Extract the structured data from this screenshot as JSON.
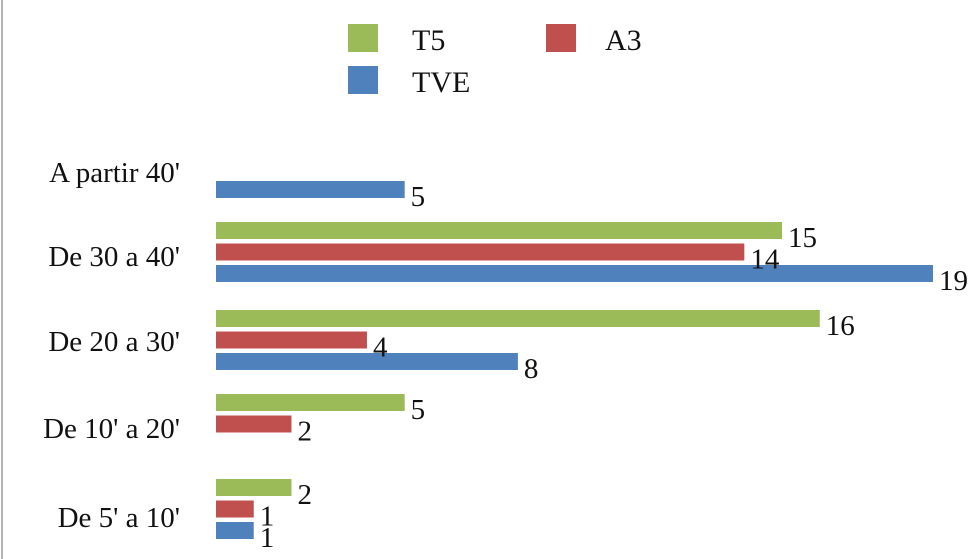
{
  "chart_data": {
    "type": "bar",
    "orientation": "horizontal",
    "title": "",
    "xlabel": "",
    "ylabel": "",
    "xlim": [
      0,
      19
    ],
    "grid": false,
    "legend_position": "top",
    "categories": [
      "A partir 40'",
      "De 30 a 40'",
      "De 20 a 30'",
      "De 10' a 20'",
      "De 5' a 10'"
    ],
    "series": [
      {
        "name": "T5",
        "color": "#9bbb59",
        "values": [
          null,
          15,
          16,
          5,
          2
        ]
      },
      {
        "name": "A3",
        "color": "#c0504d",
        "values": [
          null,
          14,
          4,
          2,
          1
        ]
      },
      {
        "name": "TVE",
        "color": "#4f81bd",
        "values": [
          5,
          19,
          8,
          null,
          1
        ]
      }
    ],
    "data_labels": true
  }
}
